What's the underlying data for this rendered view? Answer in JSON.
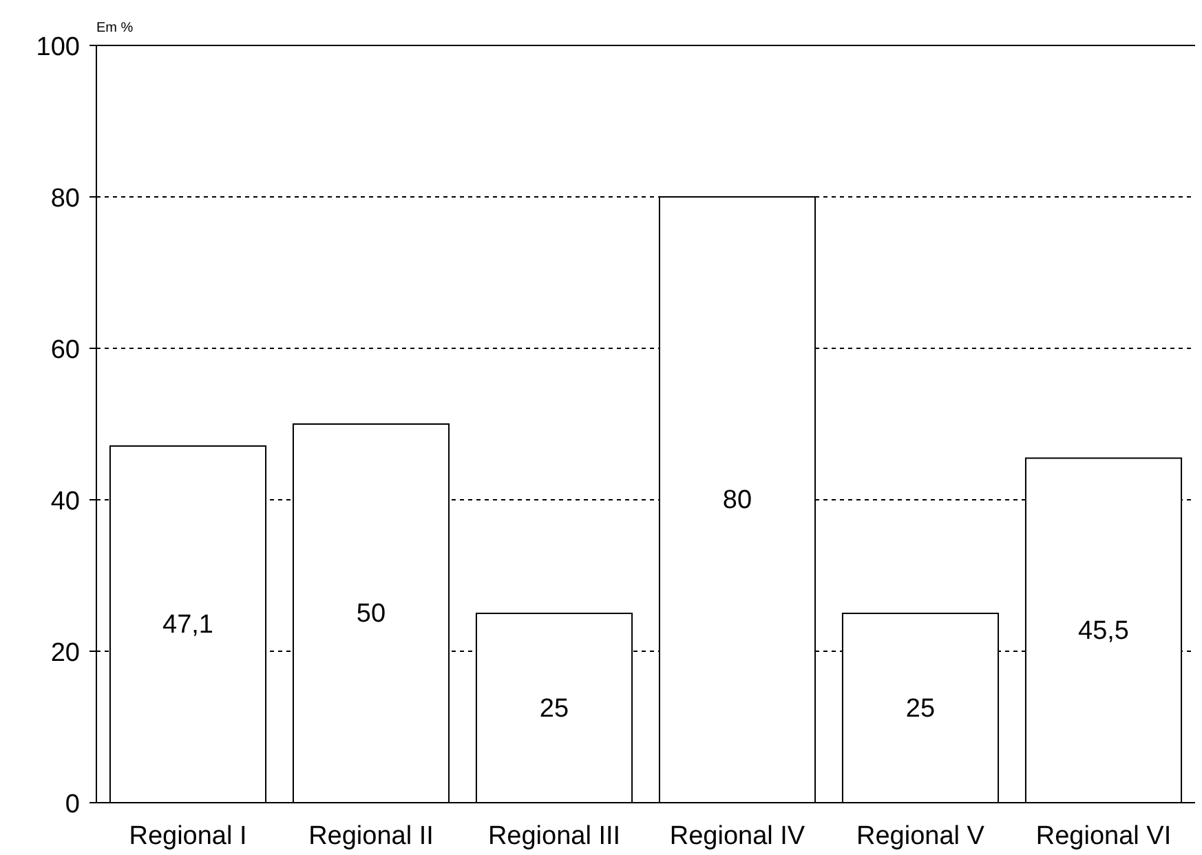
{
  "chart_data": {
    "type": "bar",
    "ylabel": "Em %",
    "categories": [
      "Regional I",
      "Regional II",
      "Regional III",
      "Regional IV",
      "Regional V",
      "Regional VI"
    ],
    "values": [
      47.1,
      50,
      25,
      80,
      25,
      45.5
    ],
    "value_labels": [
      "47,1",
      "50",
      "25",
      "80",
      "25",
      "45,5"
    ],
    "color": "#ffffff",
    "ylim": [
      0,
      100
    ],
    "yticks": [
      0,
      20,
      40,
      60,
      80,
      100
    ],
    "grid": "y"
  }
}
